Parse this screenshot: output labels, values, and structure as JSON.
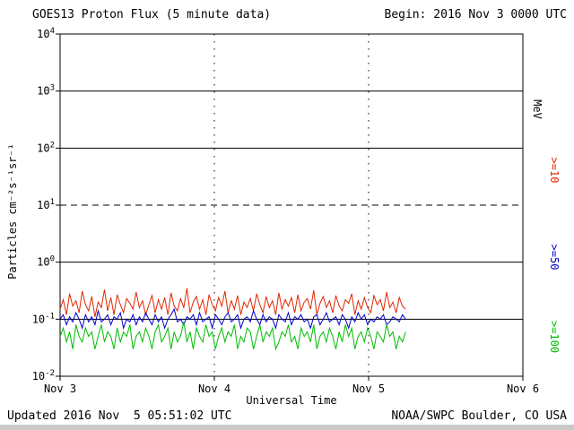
{
  "header": {
    "title": "GOES13 Proton Flux (5 minute data)",
    "begin_label": "Begin: 2016 Nov 3 0000 UTC"
  },
  "footer": {
    "updated": "Updated 2016 Nov  5 05:51:02 UTC",
    "source": "NOAA/SWPC Boulder, CO USA"
  },
  "chart_data": {
    "type": "line",
    "title": "GOES13 Proton Flux (5 minute data)",
    "xlabel": "Universal Time",
    "ylabel": "Particles cm⁻²s⁻¹sr⁻¹",
    "y_unit_label": "MeV",
    "x_ticks": [
      "Nov 3",
      "Nov 4",
      "Nov 5",
      "Nov 6"
    ],
    "x_range_days": [
      0,
      3
    ],
    "y_exponents": [
      4,
      3,
      2,
      1,
      0,
      -1,
      -2
    ],
    "ylim": [
      0.01,
      10000
    ],
    "y_scale": "log",
    "solid_hlines_exp": [
      3,
      2,
      0,
      -1
    ],
    "dashed_hlines_exp": [
      1
    ],
    "vlines_days": [
      1,
      2
    ],
    "data_start_day": 0,
    "data_end_day": 2.24,
    "series": [
      {
        "name": ">=10",
        "color": "#e02800",
        "values": [
          0.15,
          0.22,
          0.12,
          0.28,
          0.17,
          0.21,
          0.13,
          0.31,
          0.18,
          0.14,
          0.25,
          0.11,
          0.2,
          0.16,
          0.33,
          0.14,
          0.24,
          0.12,
          0.27,
          0.18,
          0.13,
          0.23,
          0.19,
          0.15,
          0.3,
          0.16,
          0.21,
          0.12,
          0.18,
          0.26,
          0.13,
          0.22,
          0.15,
          0.24,
          0.12,
          0.29,
          0.17,
          0.14,
          0.23,
          0.16,
          0.35,
          0.13,
          0.2,
          0.25,
          0.15,
          0.22,
          0.12,
          0.27,
          0.18,
          0.14,
          0.24,
          0.17,
          0.31,
          0.13,
          0.21,
          0.15,
          0.26,
          0.12,
          0.2,
          0.16,
          0.23,
          0.14,
          0.28,
          0.18,
          0.13,
          0.25,
          0.16,
          0.21,
          0.12,
          0.29,
          0.15,
          0.22,
          0.17,
          0.24,
          0.13,
          0.27,
          0.14,
          0.2,
          0.23,
          0.15,
          0.32,
          0.12,
          0.19,
          0.25,
          0.16,
          0.21,
          0.13,
          0.26,
          0.17,
          0.14,
          0.22,
          0.19,
          0.28,
          0.12,
          0.21,
          0.15,
          0.24,
          0.16,
          0.13,
          0.26,
          0.18,
          0.22,
          0.14,
          0.3,
          0.16,
          0.2,
          0.13,
          0.24,
          0.17,
          0.15
        ]
      },
      {
        "name": ">=50",
        "color": "#0000cc",
        "values": [
          0.1,
          0.12,
          0.08,
          0.11,
          0.09,
          0.13,
          0.1,
          0.07,
          0.12,
          0.09,
          0.11,
          0.08,
          0.14,
          0.09,
          0.1,
          0.12,
          0.08,
          0.11,
          0.1,
          0.13,
          0.07,
          0.1,
          0.09,
          0.12,
          0.08,
          0.11,
          0.09,
          0.13,
          0.1,
          0.08,
          0.12,
          0.09,
          0.11,
          0.07,
          0.1,
          0.12,
          0.15,
          0.09,
          0.1,
          0.08,
          0.11,
          0.1,
          0.12,
          0.08,
          0.13,
          0.09,
          0.1,
          0.11,
          0.07,
          0.12,
          0.1,
          0.08,
          0.11,
          0.13,
          0.09,
          0.1,
          0.12,
          0.07,
          0.1,
          0.11,
          0.09,
          0.14,
          0.1,
          0.08,
          0.12,
          0.09,
          0.11,
          0.1,
          0.07,
          0.12,
          0.1,
          0.09,
          0.13,
          0.08,
          0.11,
          0.1,
          0.12,
          0.09,
          0.1,
          0.07,
          0.11,
          0.12,
          0.08,
          0.1,
          0.13,
          0.09,
          0.1,
          0.11,
          0.08,
          0.12,
          0.1,
          0.07,
          0.11,
          0.09,
          0.13,
          0.1,
          0.12,
          0.08,
          0.1,
          0.09,
          0.11,
          0.1,
          0.12,
          0.08,
          0.09,
          0.11,
          0.1,
          0.09,
          0.12,
          0.1
        ]
      },
      {
        "name": ">=100",
        "color": "#00bb00",
        "values": [
          0.05,
          0.07,
          0.04,
          0.06,
          0.03,
          0.08,
          0.05,
          0.04,
          0.07,
          0.05,
          0.06,
          0.03,
          0.05,
          0.08,
          0.04,
          0.06,
          0.05,
          0.03,
          0.07,
          0.04,
          0.06,
          0.05,
          0.08,
          0.03,
          0.05,
          0.06,
          0.04,
          0.07,
          0.05,
          0.03,
          0.06,
          0.08,
          0.04,
          0.05,
          0.07,
          0.03,
          0.06,
          0.04,
          0.05,
          0.09,
          0.04,
          0.06,
          0.03,
          0.07,
          0.05,
          0.04,
          0.08,
          0.05,
          0.06,
          0.03,
          0.05,
          0.07,
          0.04,
          0.06,
          0.05,
          0.08,
          0.03,
          0.05,
          0.04,
          0.07,
          0.06,
          0.03,
          0.05,
          0.08,
          0.04,
          0.06,
          0.05,
          0.07,
          0.03,
          0.04,
          0.06,
          0.05,
          0.08,
          0.04,
          0.05,
          0.03,
          0.07,
          0.05,
          0.06,
          0.04,
          0.08,
          0.03,
          0.05,
          0.06,
          0.04,
          0.07,
          0.05,
          0.03,
          0.06,
          0.04,
          0.08,
          0.05,
          0.07,
          0.03,
          0.05,
          0.06,
          0.04,
          0.07,
          0.05,
          0.03,
          0.06,
          0.05,
          0.04,
          0.08,
          0.05,
          0.06,
          0.03,
          0.05,
          0.04,
          0.06
        ]
      }
    ]
  }
}
